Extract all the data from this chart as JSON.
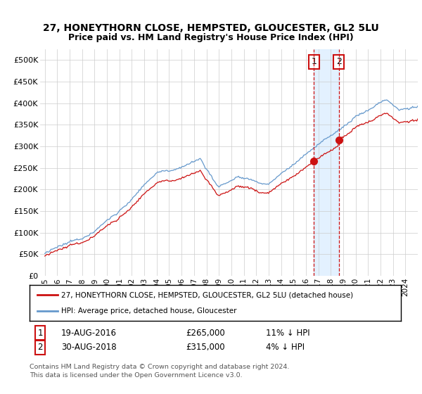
{
  "title": "27, HONEYTHORN CLOSE, HEMPSTED, GLOUCESTER, GL2 5LU",
  "subtitle": "Price paid vs. HM Land Registry's House Price Index (HPI)",
  "hpi_color": "#6699cc",
  "price_color": "#cc1111",
  "marker_color": "#cc1111",
  "vline_color": "#cc1111",
  "shade_color": "#ddeeff",
  "transaction1_date": 2016.64,
  "transaction1_price": 265000,
  "transaction1_label": "1",
  "transaction2_date": 2018.66,
  "transaction2_price": 315000,
  "transaction2_label": "2",
  "legend_line1": "27, HONEYTHORN CLOSE, HEMPSTED, GLOUCESTER, GL2 5LU (detached house)",
  "legend_line2": "HPI: Average price, detached house, Gloucester",
  "footnote1": "Contains HM Land Registry data © Crown copyright and database right 2024.",
  "footnote2": "This data is licensed under the Open Government Licence v3.0.",
  "background_color": "#ffffff",
  "grid_color": "#cccccc",
  "ylim": [
    0,
    525000
  ],
  "yticks": [
    0,
    50000,
    100000,
    150000,
    200000,
    250000,
    300000,
    350000,
    400000,
    450000,
    500000
  ],
  "ytick_labels": [
    "£0",
    "£50K",
    "£100K",
    "£150K",
    "£200K",
    "£250K",
    "£300K",
    "£350K",
    "£400K",
    "£450K",
    "£500K"
  ]
}
